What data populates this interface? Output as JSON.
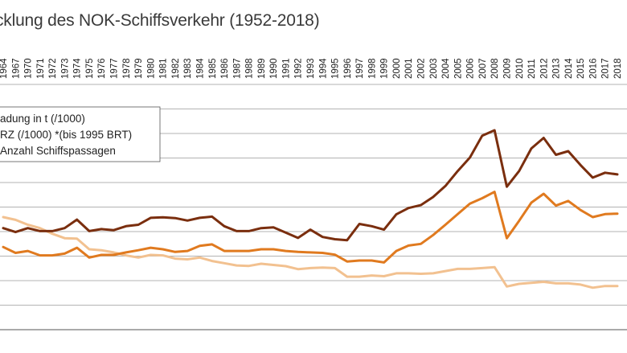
{
  "title": "cklung des NOK-Schiffsverkehr (1952-2018)",
  "chart_data": {
    "type": "line",
    "title": "cklung des NOK-Schiffsverkehr (1952-2018)",
    "xlabel": "",
    "ylabel": "",
    "grid": true,
    "legend_position": "top-left",
    "x": [
      "1964",
      "1967",
      "1970",
      "1971",
      "1972",
      "1973",
      "1974",
      "1975",
      "1976",
      "1977",
      "1978",
      "1979",
      "1980",
      "1981",
      "1982",
      "1983",
      "1984",
      "1985",
      "1986",
      "1987",
      "1988",
      "1989",
      "1990",
      "1991",
      "1992",
      "1993",
      "1994",
      "1995",
      "1996",
      "1997",
      "1998",
      "1999",
      "2000",
      "2001",
      "2002",
      "2003",
      "2004",
      "2005",
      "2006",
      "2007",
      "2008",
      "2009",
      "2010",
      "2011",
      "2012",
      "2013",
      "2014",
      "2015",
      "2016",
      "2017",
      "2018"
    ],
    "series": [
      {
        "name": "adung in t (/1000)",
        "color": "#7a2e0e",
        "values": [
          41.4,
          39.8,
          41.4,
          40.2,
          40.2,
          41.4,
          44.9,
          40.2,
          41.0,
          40.6,
          42.2,
          42.8,
          45.6,
          45.8,
          45.5,
          44.5,
          45.6,
          46.1,
          42.2,
          40.2,
          40.2,
          41.4,
          41.7,
          39.6,
          37.4,
          40.8,
          37.8,
          36.9,
          36.5,
          43.1,
          42.2,
          40.8,
          47.0,
          49.6,
          50.8,
          54.1,
          58.6,
          64.7,
          70.2,
          79.1,
          81.3,
          58.3,
          64.7,
          73.9,
          78.2,
          71.3,
          72.8,
          67.1,
          62.0,
          64.0,
          63.3
        ]
      },
      {
        "name": "RZ (/1000) *(bis 1995 BRT)",
        "color": "#e07a1f",
        "values": [
          33.7,
          31.3,
          32.1,
          30.3,
          30.3,
          31.0,
          33.4,
          29.4,
          30.5,
          30.5,
          31.5,
          32.4,
          33.4,
          32.8,
          31.7,
          32.1,
          34.2,
          34.8,
          32.1,
          32.1,
          32.1,
          32.8,
          32.8,
          32.1,
          31.7,
          31.5,
          31.3,
          30.6,
          27.8,
          28.2,
          28.2,
          27.4,
          32.1,
          34.3,
          35.0,
          38.6,
          42.8,
          47.1,
          51.4,
          53.6,
          56.2,
          37.3,
          44.4,
          51.8,
          55.4,
          50.6,
          52.5,
          48.8,
          45.9,
          47.1,
          47.3
        ]
      },
      {
        "name": "Anzahl Schiffspassagen",
        "color": "#f2c190",
        "values": [
          45.9,
          44.8,
          42.8,
          41.4,
          39.1,
          37.3,
          37.1,
          32.8,
          32.4,
          31.5,
          30.3,
          29.4,
          30.5,
          30.3,
          29.0,
          28.7,
          29.4,
          28.0,
          27.1,
          26.2,
          26.0,
          26.9,
          26.4,
          25.9,
          24.7,
          25.1,
          25.3,
          25.1,
          21.6,
          21.6,
          22.1,
          21.8,
          23.0,
          23.0,
          22.8,
          23.0,
          23.9,
          24.8,
          24.8,
          25.1,
          25.5,
          17.6,
          18.7,
          19.1,
          19.5,
          18.9,
          18.9,
          18.4,
          17.1,
          17.8,
          17.8
        ]
      }
    ]
  }
}
